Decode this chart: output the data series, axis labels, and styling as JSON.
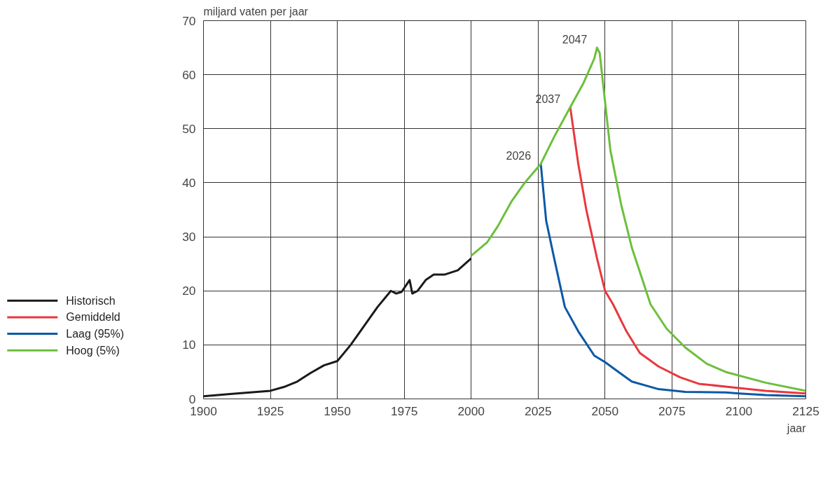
{
  "chart_data": {
    "type": "line",
    "ylabel": "miljard vaten per jaar",
    "xlabel": "jaar",
    "xlim": [
      1900,
      2125
    ],
    "xticks": [
      1900,
      1925,
      1950,
      1975,
      2000,
      2025,
      2050,
      2075,
      2100,
      2125
    ],
    "ylim": [
      0,
      70
    ],
    "yticks": [
      0,
      10,
      20,
      30,
      40,
      50,
      60,
      70
    ],
    "grid": true,
    "legend": "left",
    "line_style": "solid",
    "marker": "none",
    "series": [
      {
        "name": "Historisch",
        "color": "#1a1a1a",
        "x": [
          1900,
          1910,
          1925,
          1930,
          1935,
          1940,
          1945,
          1950,
          1955,
          1960,
          1965,
          1970,
          1972,
          1974,
          1977,
          1978,
          1980,
          1983,
          1986,
          1990,
          1995,
          2000
        ],
        "values": [
          0.5,
          0.9,
          1.5,
          2.2,
          3.2,
          4.8,
          6.2,
          7,
          10,
          13.5,
          17,
          20,
          19.5,
          19.8,
          22,
          19.5,
          20,
          22,
          23,
          23,
          23.8,
          26
        ]
      },
      {
        "name": "Gemiddeld",
        "color": "#e8383d",
        "x": [
          2037,
          2040,
          2043,
          2047,
          2050,
          2053,
          2058,
          2063,
          2070,
          2078,
          2085,
          2100,
          2110,
          2125
        ],
        "values": [
          54,
          43.5,
          35,
          26,
          20,
          17.5,
          12.5,
          8.5,
          6,
          4,
          2.8,
          2,
          1.5,
          1
        ]
      },
      {
        "name": "Laag (95%)",
        "color": "#0b59a6",
        "x": [
          2026,
          2028,
          2031,
          2035,
          2040,
          2046,
          2050,
          2055,
          2060,
          2070,
          2080,
          2095,
          2100,
          2110,
          2125
        ],
        "values": [
          43.5,
          33,
          26,
          17,
          12.5,
          8,
          6.8,
          5,
          3.2,
          1.8,
          1.3,
          1.2,
          1,
          0.7,
          0.5
        ]
      },
      {
        "name": "Hoog (5%)",
        "color": "#6cbf3c",
        "x": [
          2000,
          2006,
          2010,
          2015,
          2020,
          2026,
          2031,
          2037,
          2042,
          2046,
          2047,
          2048,
          2050,
          2052,
          2056,
          2060,
          2067,
          2073,
          2080,
          2088,
          2095,
          2110,
          2125
        ],
        "values": [
          26.5,
          29,
          32,
          36.5,
          40,
          43.5,
          48.5,
          54,
          58.5,
          63,
          65,
          64,
          55,
          46,
          36,
          28,
          17.5,
          13,
          9.5,
          6.5,
          5,
          3,
          1.5
        ]
      }
    ],
    "annotations": [
      {
        "text": "2047",
        "x": 2047,
        "y": 65
      },
      {
        "text": "2037",
        "x": 2037,
        "y": 54
      },
      {
        "text": "2026",
        "x": 2026,
        "y": 43.5
      }
    ]
  }
}
